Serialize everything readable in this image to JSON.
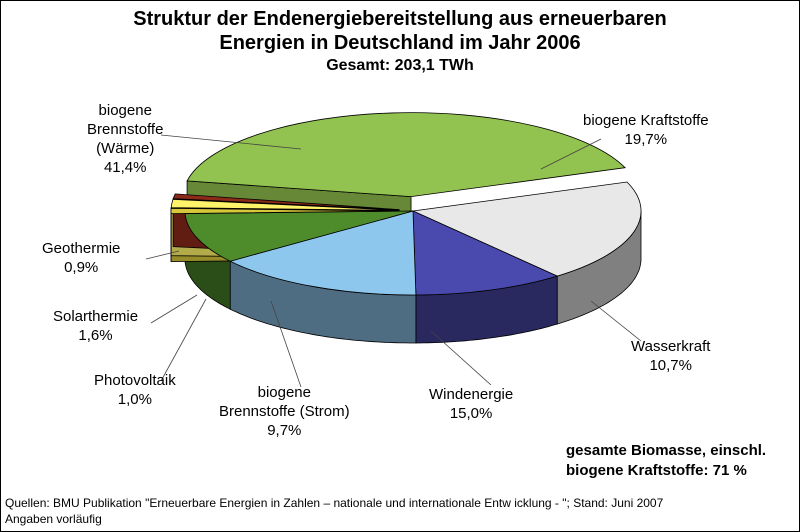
{
  "header": {
    "title_line_1": "Struktur der Endenergiebereitstellung aus erneuerbaren",
    "title_line_2": "Energien in Deutschland im Jahr 2006",
    "subtitle": "Gesamt: 203,1 TWh"
  },
  "chart_data": {
    "type": "pie",
    "style": "3d-exploded",
    "title": "Struktur der Endenergiebereitstellung aus erneuerbaren Energien in Deutschland im Jahr 2006",
    "subtitle": "Gesamt: 203,1 TWh",
    "unit": "%",
    "slices": [
      {
        "label": "biogene Brennstoffe (Wärme)",
        "value": 41.4,
        "display": "41,4%",
        "color": "#92C24F"
      },
      {
        "label": "biogene Kraftstoffe",
        "value": 19.7,
        "display": "19,7%",
        "color": "#E8E8E8"
      },
      {
        "label": "Wasserkraft",
        "value": 10.7,
        "display": "10,7%",
        "color": "#4A4AAE"
      },
      {
        "label": "Windenergie",
        "value": 15.0,
        "display": "15,0%",
        "color": "#8EC7EE"
      },
      {
        "label": "biogene Brennstoffe (Strom)",
        "value": 9.7,
        "display": "9,7%",
        "color": "#4E8C2B"
      },
      {
        "label": "Photovoltaik",
        "value": 1.0,
        "display": "1,0%",
        "color": "#D6C83A"
      },
      {
        "label": "Solarthermie",
        "value": 1.6,
        "display": "1,6%",
        "color": "#FFF36A"
      },
      {
        "label": "Geothermie",
        "value": 0.9,
        "display": "0,9%",
        "color": "#8B2A18"
      }
    ]
  },
  "labels": {
    "waerme": [
      "biogene",
      "Brennstoffe",
      "(Wärme)",
      "41,4%"
    ],
    "kraftstoffe": [
      "biogene Kraftstoffe",
      "19,7%"
    ],
    "wasser": [
      "Wasserkraft",
      "10,7%"
    ],
    "wind": [
      "Windenergie",
      "15,0%"
    ],
    "strom": [
      "biogene",
      "Brennstoffe (Strom)",
      "9,7%"
    ],
    "pv": [
      "Photovoltaik",
      "1,0%"
    ],
    "solar": [
      "Solarthermie",
      "1,6%"
    ],
    "geo": [
      "Geothermie",
      "0,9%"
    ]
  },
  "summary": {
    "line_1": "gesamte Biomasse, einschl.",
    "line_2": "biogene Kraftstoffe: 71 %"
  },
  "sources": {
    "line_1": "Quellen: BMU Publikation \"Erneuerbare Energien in Zahlen – nationale und internationale Entw icklung - \"; Stand: Juni 2007",
    "line_2": "Angaben vorläufig"
  }
}
